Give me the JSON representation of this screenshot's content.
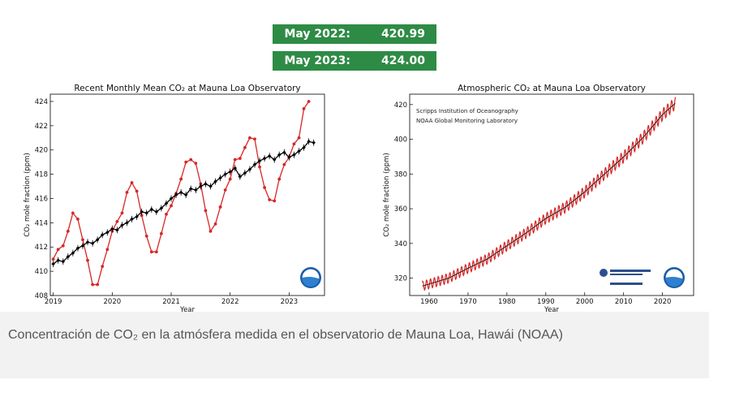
{
  "badges": [
    {
      "label": "May 2022:",
      "value": "420.99 ppm"
    },
    {
      "label": "May 2023:",
      "value": "424.00 ppm"
    }
  ],
  "caption": "Concentración de CO₂ en la atmósfera medida en el observatorio de Mauna Loa, Hawái (NOAA)",
  "colors": {
    "badge": "#2e8b45",
    "monthly": "#d62728",
    "trend": "#000000",
    "caption_bg": "#f2f2f2"
  },
  "chart_data": [
    {
      "type": "line",
      "title": "Recent Monthly Mean CO₂ at Mauna Loa Observatory",
      "xlabel": "Year",
      "ylabel": "CO₂ mole fraction (ppm)",
      "xlim": [
        2018.95,
        2023.6
      ],
      "ylim": [
        408,
        424.6
      ],
      "xticks": [
        2019,
        2020,
        2021,
        2022,
        2023
      ],
      "yticks": [
        408,
        410,
        412,
        414,
        416,
        418,
        420,
        422,
        424
      ],
      "grid": false,
      "legend": "none",
      "series": [
        {
          "role": "monthly",
          "color": "#d62728",
          "marker": "circle",
          "x": [
            2019.0,
            2019.083,
            2019.167,
            2019.25,
            2019.333,
            2019.417,
            2019.5,
            2019.583,
            2019.667,
            2019.75,
            2019.833,
            2019.917,
            2020.0,
            2020.083,
            2020.167,
            2020.25,
            2020.333,
            2020.417,
            2020.5,
            2020.583,
            2020.667,
            2020.75,
            2020.833,
            2020.917,
            2021.0,
            2021.083,
            2021.167,
            2021.25,
            2021.333,
            2021.417,
            2021.5,
            2021.583,
            2021.667,
            2021.75,
            2021.833,
            2021.917,
            2022.0,
            2022.083,
            2022.167,
            2022.25,
            2022.333,
            2022.417,
            2022.5,
            2022.583,
            2022.667,
            2022.75,
            2022.833,
            2022.917,
            2023.0,
            2023.083,
            2023.167,
            2023.25,
            2023.333
          ],
          "y": [
            411.0,
            411.8,
            412.1,
            413.3,
            414.8,
            414.3,
            412.6,
            410.9,
            408.9,
            408.9,
            410.4,
            411.8,
            413.3,
            414.1,
            414.8,
            416.5,
            417.3,
            416.6,
            414.6,
            412.9,
            411.6,
            411.6,
            413.1,
            414.7,
            415.4,
            416.4,
            417.6,
            419.0,
            419.2,
            418.9,
            417.2,
            415.0,
            413.3,
            413.9,
            415.3,
            416.7,
            417.6,
            419.2,
            419.3,
            420.2,
            421.0,
            420.9,
            418.6,
            416.9,
            415.9,
            415.8,
            417.6,
            418.8,
            419.4,
            420.5,
            421.0,
            423.4,
            424.0
          ]
        },
        {
          "role": "trend",
          "color": "#000000",
          "marker": "diamond",
          "x": [
            2019.0,
            2019.083,
            2019.167,
            2019.25,
            2019.333,
            2019.417,
            2019.5,
            2019.583,
            2019.667,
            2019.75,
            2019.833,
            2019.917,
            2020.0,
            2020.083,
            2020.167,
            2020.25,
            2020.333,
            2020.417,
            2020.5,
            2020.583,
            2020.667,
            2020.75,
            2020.833,
            2020.917,
            2021.0,
            2021.083,
            2021.167,
            2021.25,
            2021.333,
            2021.417,
            2021.5,
            2021.583,
            2021.667,
            2021.75,
            2021.833,
            2021.917,
            2022.0,
            2022.083,
            2022.167,
            2022.25,
            2022.333,
            2022.417,
            2022.5,
            2022.583,
            2022.667,
            2022.75,
            2022.833,
            2022.917,
            2023.0,
            2023.083,
            2023.167,
            2023.25,
            2023.333,
            2023.417
          ],
          "y": [
            410.6,
            410.9,
            410.8,
            411.2,
            411.5,
            411.9,
            412.1,
            412.4,
            412.3,
            412.6,
            413.0,
            413.2,
            413.5,
            413.4,
            413.8,
            414.0,
            414.3,
            414.5,
            414.9,
            414.8,
            415.1,
            414.9,
            415.2,
            415.6,
            416.0,
            416.3,
            416.5,
            416.3,
            416.8,
            416.7,
            417.0,
            417.2,
            417.0,
            417.4,
            417.7,
            418.0,
            418.2,
            418.5,
            417.8,
            418.1,
            418.4,
            418.8,
            419.1,
            419.3,
            419.5,
            419.2,
            419.6,
            419.8,
            419.4,
            419.6,
            419.9,
            420.2,
            420.7,
            420.6
          ]
        }
      ]
    },
    {
      "type": "line",
      "title": "Atmospheric CO₂ at Mauna Loa Observatory",
      "xlabel": "Year",
      "ylabel": "CO₂ mole fraction (ppm)",
      "xlim": [
        1955,
        2028
      ],
      "ylim": [
        310,
        426
      ],
      "xticks": [
        1960,
        1970,
        1980,
        1990,
        2000,
        2010,
        2020
      ],
      "yticks": [
        320,
        340,
        360,
        380,
        400,
        420
      ],
      "grid": false,
      "legend_lines": [
        "Scripps Institution of Oceanography",
        "NOAA Global Monitoring Laboratory"
      ],
      "legend": "top-left",
      "series": [
        {
          "role": "monthly",
          "color": "#d62728",
          "start": 1958.25,
          "end": 2023.4,
          "note_curve": "seasonal cycle on rising trend",
          "trend_points": [
            [
              1958,
              315.3
            ],
            [
              1965,
              320.0
            ],
            [
              1970,
              325.7
            ],
            [
              1975,
              331.1
            ],
            [
              1980,
              338.7
            ],
            [
              1985,
              346.1
            ],
            [
              1990,
              354.4
            ],
            [
              1995,
              360.8
            ],
            [
              2000,
              369.7
            ],
            [
              2005,
              379.8
            ],
            [
              2010,
              389.9
            ],
            [
              2015,
              401.0
            ],
            [
              2020,
              414.2
            ],
            [
              2023.4,
              421.0
            ]
          ]
        }
      ],
      "logos": [
        "Scripps Oceanography",
        "UC San Diego",
        "NOAA"
      ]
    }
  ]
}
